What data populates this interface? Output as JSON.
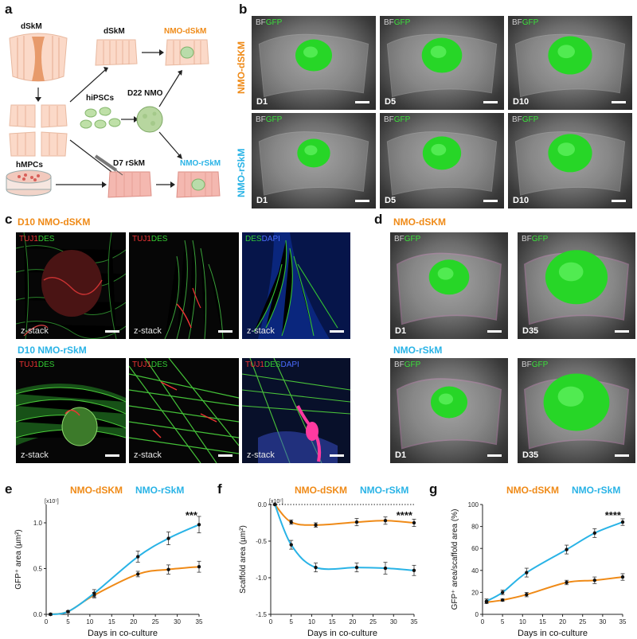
{
  "panels": {
    "a": {
      "letter": "a",
      "labels": {
        "dskm_top": "dSkM",
        "dskm_mid": "dSkM",
        "nmo_dskm": "NMO-dSkM",
        "hipscs": "hiPSCs",
        "d22_nmo": "D22 NMO",
        "hmpcs": "hMPCs",
        "d7_rskm": "D7 rSkM",
        "nmo_rskm": "NMO-rSkM"
      }
    },
    "b": {
      "letter": "b",
      "row_labels": [
        "NMO-dSKM",
        "NMO-rSkM"
      ],
      "channel_bf": "BF",
      "channel_gfp": "GFP",
      "days": [
        "D1",
        "D5",
        "D10"
      ]
    },
    "c": {
      "letter": "c",
      "row1_title": "D10 NMO-dSKM",
      "row2_title": "D10 NMO-rSkM",
      "ch_tuj1": "TUJ1",
      "ch_des": "DES",
      "ch_dapi": "DAPI",
      "zstack": "z-stack"
    },
    "d": {
      "letter": "d",
      "row1_title": "NMO-dSKM",
      "row2_title": "NMO-rSkM",
      "channel_bf": "BF",
      "channel_gfp": "GFP",
      "days": [
        "D1",
        "D35"
      ]
    },
    "e": {
      "letter": "e"
    },
    "f": {
      "letter": "f"
    },
    "g": {
      "letter": "g"
    }
  },
  "chart_data": [
    {
      "type": "line",
      "panel": "e",
      "legend": [
        "NMO-dSKM",
        "NMO-rSkM"
      ],
      "xlabel": "Days in co-culture",
      "ylabel": "GFP⁺ area (µm²)",
      "multiplier": "[x10⁷]",
      "significance": "***",
      "xlim": [
        0,
        35
      ],
      "ylim": [
        0,
        1.2
      ],
      "xticks": [
        0,
        5,
        10,
        15,
        20,
        25,
        30,
        35
      ],
      "yticks": [
        0.0,
        0.5,
        1.0
      ],
      "ytick_labels": [
        "0.0",
        "0.5",
        "1.0"
      ],
      "colors": [
        "#ef8a17",
        "#29b3e6"
      ],
      "x": [
        1,
        5,
        11,
        21,
        28,
        35
      ],
      "series": [
        {
          "name": "NMO-dSKM",
          "values": [
            0.0,
            0.03,
            0.21,
            0.44,
            0.49,
            0.52
          ],
          "err": [
            0.01,
            0.01,
            0.03,
            0.03,
            0.05,
            0.06
          ]
        },
        {
          "name": "NMO-rSkM",
          "values": [
            0.0,
            0.03,
            0.23,
            0.63,
            0.83,
            0.98
          ],
          "err": [
            0.01,
            0.01,
            0.04,
            0.06,
            0.07,
            0.09
          ]
        }
      ]
    },
    {
      "type": "line",
      "panel": "f",
      "legend": [
        "NMO-dSKM",
        "NMO-rSkM"
      ],
      "xlabel": "Days in co-culture",
      "ylabel": "Scaffold area (µm²)",
      "multiplier": "[x10⁷]",
      "significance": "****",
      "xlim": [
        0,
        35
      ],
      "ylim": [
        -1.5,
        0.0
      ],
      "xticks": [
        0,
        5,
        10,
        15,
        20,
        25,
        30,
        35
      ],
      "yticks": [
        0.0,
        -0.5,
        -1.0,
        -1.5
      ],
      "ytick_labels": [
        "0.0",
        "-0.5",
        "-1.0",
        "-1.5"
      ],
      "colors": [
        "#ef8a17",
        "#29b3e6"
      ],
      "x": [
        1,
        5,
        11,
        21,
        28,
        35
      ],
      "series": [
        {
          "name": "NMO-dSKM",
          "values": [
            0.0,
            -0.24,
            -0.28,
            -0.24,
            -0.22,
            -0.25
          ],
          "err": [
            0.01,
            0.03,
            0.03,
            0.05,
            0.05,
            0.05
          ]
        },
        {
          "name": "NMO-rSkM",
          "values": [
            0.0,
            -0.55,
            -0.86,
            -0.86,
            -0.87,
            -0.9
          ],
          "err": [
            0.01,
            0.06,
            0.06,
            0.06,
            0.08,
            0.07
          ]
        }
      ]
    },
    {
      "type": "line",
      "panel": "g",
      "legend": [
        "NMO-dSKM",
        "NMO-rSkM"
      ],
      "xlabel": "Days in co-culture",
      "ylabel": "GFP⁺ area/scaffold area (%)",
      "significance": "****",
      "xlim": [
        0,
        35
      ],
      "ylim": [
        0,
        100
      ],
      "xticks": [
        0,
        5,
        10,
        15,
        20,
        25,
        30,
        35
      ],
      "yticks": [
        0,
        20,
        40,
        60,
        80,
        100
      ],
      "ytick_labels": [
        "0",
        "20",
        "40",
        "60",
        "80",
        "100"
      ],
      "colors": [
        "#ef8a17",
        "#29b3e6"
      ],
      "x": [
        1,
        5,
        11,
        21,
        28,
        35
      ],
      "series": [
        {
          "name": "NMO-dSKM",
          "values": [
            11,
            13,
            18,
            29,
            31,
            34
          ],
          "err": [
            1,
            1,
            2,
            2,
            3,
            3
          ]
        },
        {
          "name": "NMO-rSkM",
          "values": [
            12,
            20,
            38,
            59,
            74,
            84
          ],
          "err": [
            2,
            2,
            4,
            4,
            4,
            3
          ]
        }
      ]
    }
  ]
}
